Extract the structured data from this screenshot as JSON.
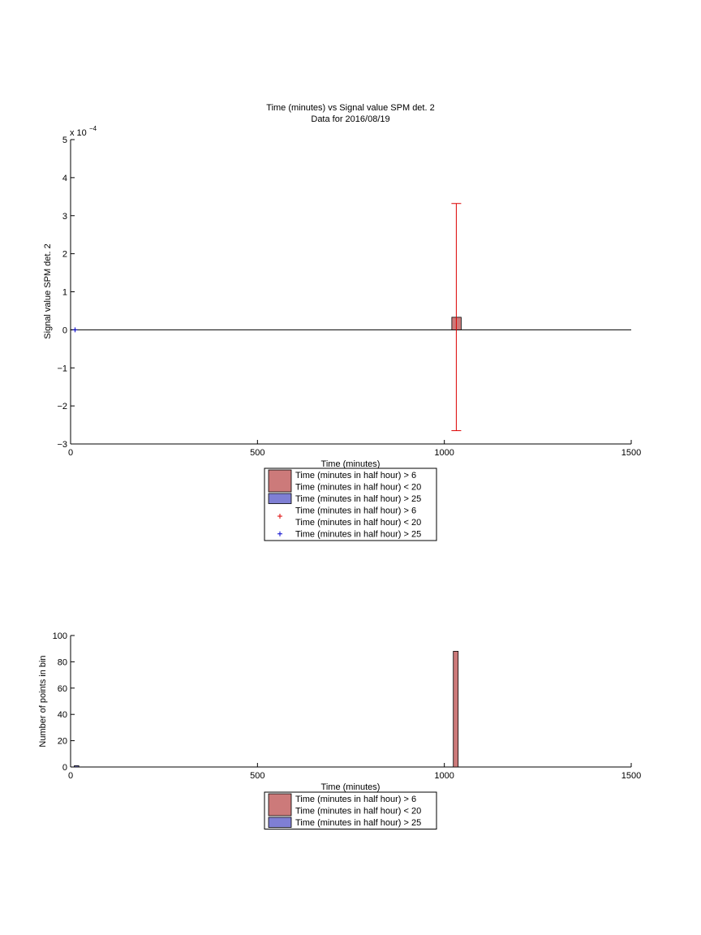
{
  "colors": {
    "red_fill": "#cc7a7a",
    "blue_fill": "#7f7fd4",
    "red_marker": "#dd0000",
    "blue_marker": "#0000cc",
    "errorbar": "#dd0000",
    "axis": "#000000"
  },
  "chart_data": [
    {
      "type": "bar",
      "title": "Time (minutes) vs Signal value SPM det. 2",
      "subtitle": "Data for 2016/08/19",
      "xlabel": "Time (minutes)",
      "ylabel": "Signal value SPM det. 2",
      "exponent_label": "x 10",
      "exponent_power": "−4",
      "xlim": [
        0,
        1500
      ],
      "ylim": [
        -3,
        5
      ],
      "y_scale": 0.0001,
      "grid": false,
      "xticks": [
        0,
        500,
        1000,
        1500
      ],
      "xtick_labels": [
        "0",
        "500",
        "1000",
        "1500"
      ],
      "yticks": [
        -3,
        -2,
        -1,
        0,
        1,
        2,
        3,
        4,
        5
      ],
      "ytick_labels": [
        "−3",
        "−2",
        "−1",
        "0",
        "1",
        "2",
        "3",
        "4",
        "5"
      ],
      "baseline": 0,
      "bars": [
        {
          "series": 0,
          "x0": 1020,
          "x1": 1045,
          "value": 0.33
        }
      ],
      "errorbars": [
        {
          "x": 1032,
          "low": -2.65,
          "high": 3.32
        }
      ],
      "points": [
        {
          "series": 1,
          "x": 12,
          "y": 0
        }
      ],
      "legend_position": "below",
      "legend": [
        {
          "kind": "patch",
          "color": "red",
          "lines": [
            "Time (minutes in half hour) > 6",
            "Time (minutes in half hour) < 20"
          ]
        },
        {
          "kind": "patch",
          "color": "blue",
          "lines": [
            "Time (minutes in half hour) > 25"
          ]
        },
        {
          "kind": "marker",
          "color": "red",
          "lines": [
            "Time (minutes in half hour) > 6",
            "Time (minutes in half hour) < 20"
          ]
        },
        {
          "kind": "marker",
          "color": "blue",
          "lines": [
            "Time (minutes in half hour) > 25"
          ]
        }
      ]
    },
    {
      "type": "bar",
      "xlabel": "Time (minutes)",
      "ylabel": "Number of points in bin",
      "xlim": [
        0,
        1500
      ],
      "ylim": [
        0,
        100
      ],
      "grid": false,
      "xticks": [
        0,
        500,
        1000,
        1500
      ],
      "xtick_labels": [
        "0",
        "500",
        "1000",
        "1500"
      ],
      "yticks": [
        0,
        20,
        40,
        60,
        80,
        100
      ],
      "ytick_labels": [
        "0",
        "20",
        "40",
        "60",
        "80",
        "100"
      ],
      "baseline": 0,
      "bars": [
        {
          "series": 0,
          "x0": 1024,
          "x1": 1037,
          "value": 88
        },
        {
          "series": 1,
          "x0": 10,
          "x1": 22,
          "value": 1
        }
      ],
      "legend_position": "below",
      "legend": [
        {
          "kind": "patch",
          "color": "red",
          "lines": [
            "Time (minutes in half hour) > 6",
            "Time (minutes in half hour) < 20"
          ]
        },
        {
          "kind": "patch",
          "color": "blue",
          "lines": [
            "Time (minutes in half hour) > 25"
          ]
        }
      ]
    }
  ]
}
